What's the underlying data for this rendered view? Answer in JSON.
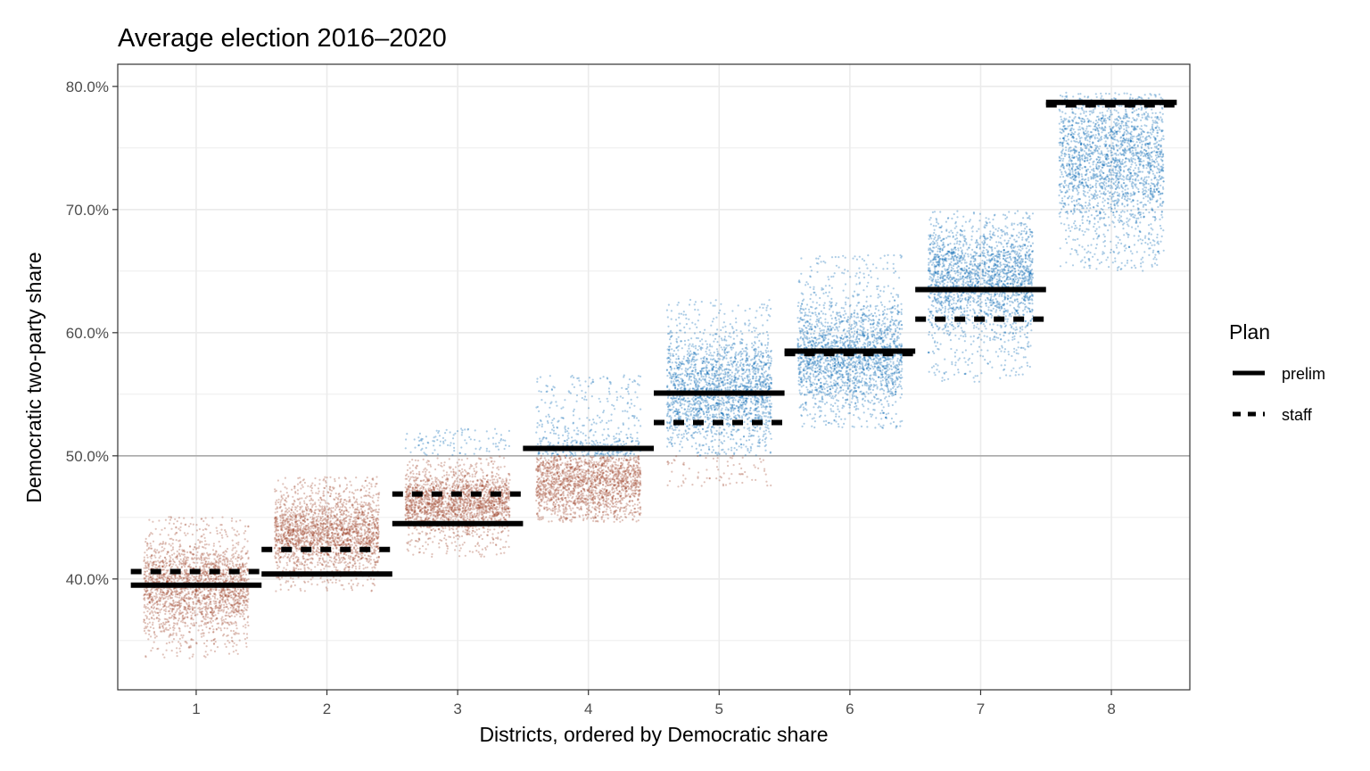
{
  "chart_data": {
    "type": "scatter",
    "title": "Average election 2016–2020",
    "xlabel": "Districts, ordered by Democratic share",
    "ylabel": "Democratic two-party share",
    "categories": [
      "1",
      "2",
      "3",
      "4",
      "5",
      "6",
      "7",
      "8"
    ],
    "y_ticks": [
      {
        "value": 0.4,
        "label": "40.0%"
      },
      {
        "value": 0.5,
        "label": "50.0%"
      },
      {
        "value": 0.6,
        "label": "60.0%"
      },
      {
        "value": 0.7,
        "label": "70.0%"
      },
      {
        "value": 0.8,
        "label": "80.0%"
      }
    ],
    "ylim": [
      0.31,
      0.818
    ],
    "reference_line": 0.5,
    "grid": true,
    "colors": {
      "democratic": "#0063B1",
      "republican": "#A0442C",
      "reference": "#aaaaaa"
    },
    "simulated_distributions": [
      {
        "district": 1,
        "min": 0.335,
        "max": 0.451,
        "mean": 0.393,
        "sd": 0.018
      },
      {
        "district": 2,
        "min": 0.39,
        "max": 0.483,
        "mean": 0.437,
        "sd": 0.015
      },
      {
        "district": 3,
        "min": 0.418,
        "max": 0.522,
        "mean": 0.462,
        "sd": 0.012
      },
      {
        "district": 4,
        "min": 0.446,
        "max": 0.566,
        "mean": 0.48,
        "sd": 0.017
      },
      {
        "district": 5,
        "min": 0.475,
        "max": 0.628,
        "mean": 0.553,
        "sd": 0.022
      },
      {
        "district": 6,
        "min": 0.522,
        "max": 0.663,
        "mean": 0.58,
        "sd": 0.022
      },
      {
        "district": 7,
        "min": 0.559,
        "max": 0.699,
        "mean": 0.645,
        "sd": 0.022
      },
      {
        "district": 8,
        "min": 0.65,
        "max": 0.795,
        "mean": 0.74,
        "sd": 0.03
      }
    ],
    "legend": {
      "title": "Plan",
      "position": "right",
      "entries": [
        {
          "label": "prelim",
          "linetype": "solid"
        },
        {
          "label": "staff",
          "linetype": "dashed"
        }
      ]
    },
    "series": [
      {
        "name": "prelim",
        "linetype": "solid",
        "values": [
          0.395,
          0.404,
          0.445,
          0.506,
          0.551,
          0.585,
          0.635,
          0.787
        ]
      },
      {
        "name": "staff",
        "linetype": "dashed",
        "values": [
          0.406,
          0.424,
          0.469,
          0.506,
          0.527,
          0.583,
          0.611,
          0.785
        ]
      }
    ]
  }
}
